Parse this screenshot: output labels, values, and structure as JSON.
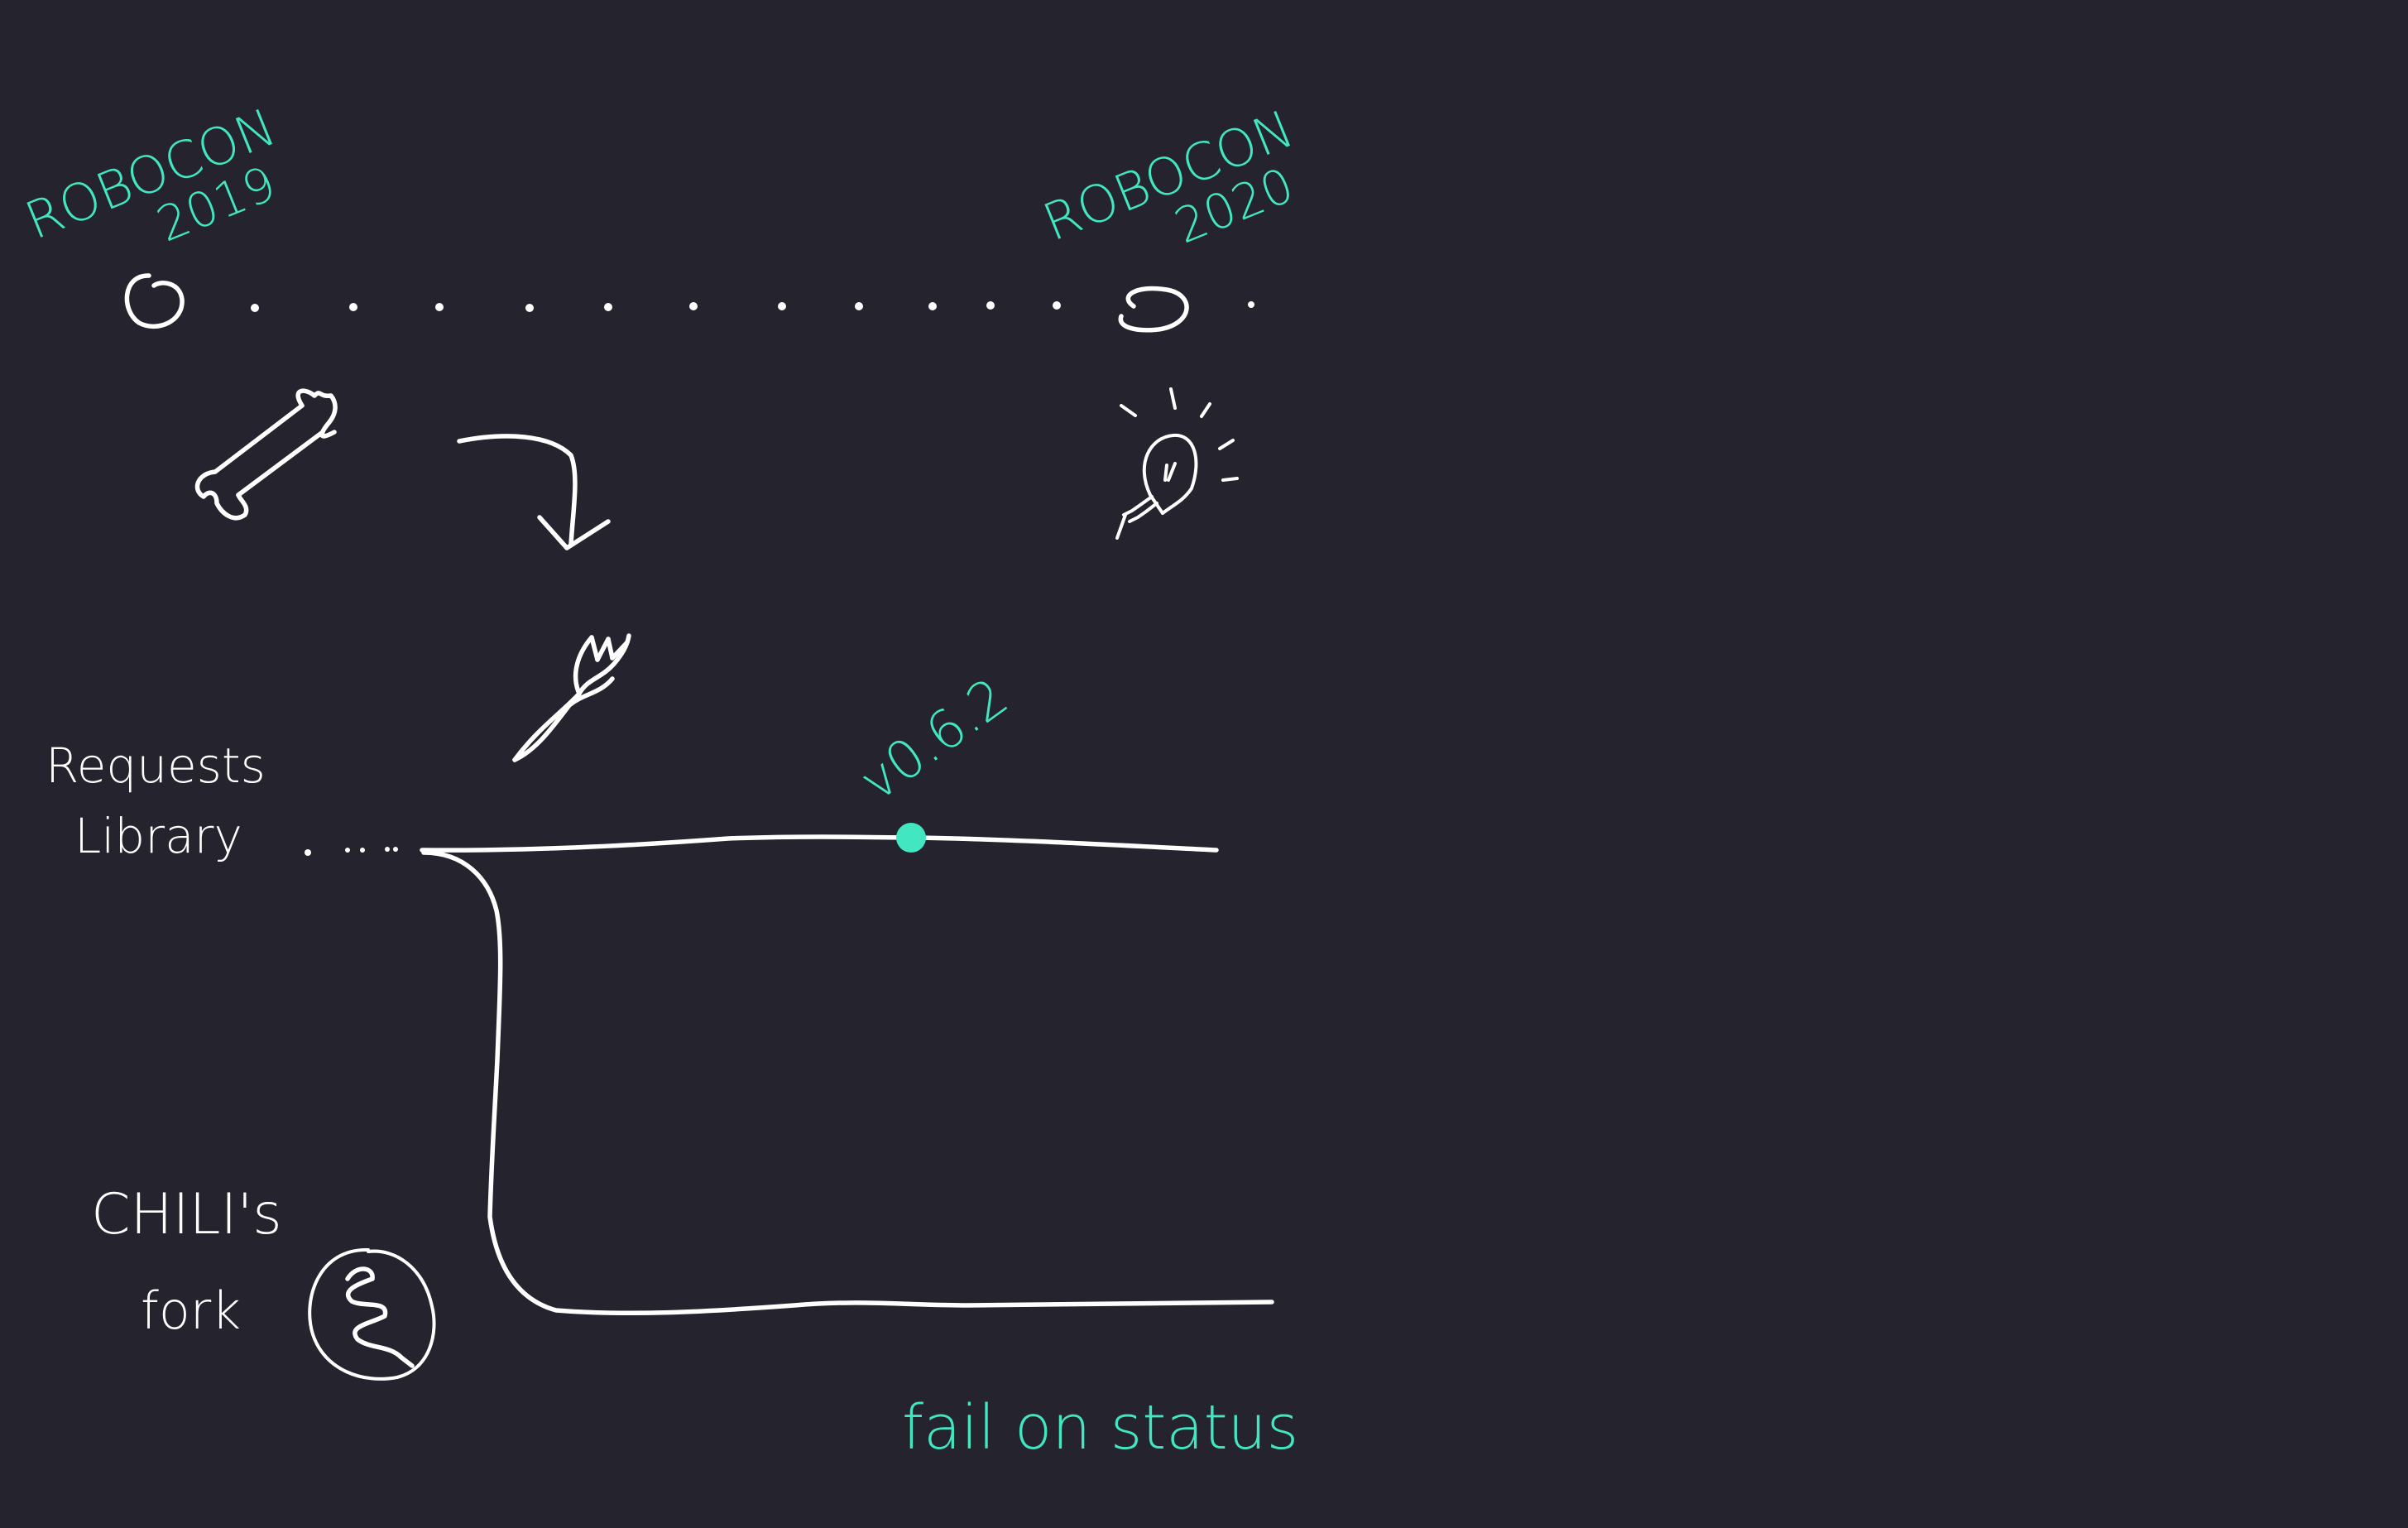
{
  "colors": {
    "background": "#24232e",
    "ink": "#ffffff",
    "accent": "#42e6c0"
  },
  "timeline": {
    "start_label_line1": "ROBOCON",
    "start_label_line2": "2019",
    "end_label_line1": "ROBOCON",
    "end_label_line2": "2020"
  },
  "icons": {
    "start_node": "circle-icon",
    "end_node": "circle-icon",
    "wrench": "wrench-icon",
    "curved_arrow": "curved-arrow-icon",
    "fork": "fork-icon",
    "lightbulb": "lightbulb-icon",
    "chili_logo": "chili-logo-icon"
  },
  "branches": {
    "main_label_line1": "Requests",
    "main_label_line2": "Library",
    "version_label": "v0.6.2",
    "fork_label_line1": "CHILI's",
    "fork_label_line2": "fork",
    "feature_label": "fail on status"
  }
}
